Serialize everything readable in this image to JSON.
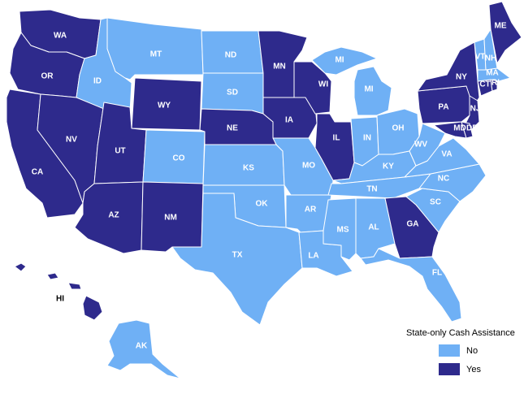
{
  "map": {
    "colors": {
      "no": "#6fb0f5",
      "yes": "#2e2a8c",
      "border": "#ffffff"
    },
    "states": [
      {
        "abbr": "WA",
        "status": "yes"
      },
      {
        "abbr": "OR",
        "status": "yes"
      },
      {
        "abbr": "CA",
        "status": "yes"
      },
      {
        "abbr": "NV",
        "status": "yes"
      },
      {
        "abbr": "ID",
        "status": "no"
      },
      {
        "abbr": "MT",
        "status": "no"
      },
      {
        "abbr": "WY",
        "status": "yes"
      },
      {
        "abbr": "UT",
        "status": "yes"
      },
      {
        "abbr": "AZ",
        "status": "yes"
      },
      {
        "abbr": "CO",
        "status": "no"
      },
      {
        "abbr": "NM",
        "status": "yes"
      },
      {
        "abbr": "ND",
        "status": "no"
      },
      {
        "abbr": "SD",
        "status": "no"
      },
      {
        "abbr": "NE",
        "status": "yes"
      },
      {
        "abbr": "KS",
        "status": "no"
      },
      {
        "abbr": "OK",
        "status": "no"
      },
      {
        "abbr": "TX",
        "status": "no"
      },
      {
        "abbr": "MN",
        "status": "yes"
      },
      {
        "abbr": "IA",
        "status": "yes"
      },
      {
        "abbr": "MO",
        "status": "no"
      },
      {
        "abbr": "AR",
        "status": "no"
      },
      {
        "abbr": "LA",
        "status": "no"
      },
      {
        "abbr": "WI",
        "status": "yes"
      },
      {
        "abbr": "IL",
        "status": "yes"
      },
      {
        "abbr": "MI",
        "status": "no"
      },
      {
        "abbr": "IN",
        "status": "no"
      },
      {
        "abbr": "OH",
        "status": "no"
      },
      {
        "abbr": "KY",
        "status": "no"
      },
      {
        "abbr": "TN",
        "status": "no"
      },
      {
        "abbr": "MS",
        "status": "no"
      },
      {
        "abbr": "AL",
        "status": "no"
      },
      {
        "abbr": "GA",
        "status": "yes"
      },
      {
        "abbr": "FL",
        "status": "no"
      },
      {
        "abbr": "SC",
        "status": "no"
      },
      {
        "abbr": "NC",
        "status": "no"
      },
      {
        "abbr": "VA",
        "status": "no"
      },
      {
        "abbr": "WV",
        "status": "no"
      },
      {
        "abbr": "PA",
        "status": "yes"
      },
      {
        "abbr": "NY",
        "status": "yes"
      },
      {
        "abbr": "NJ",
        "status": "yes"
      },
      {
        "abbr": "MD",
        "status": "yes"
      },
      {
        "abbr": "DE",
        "status": "yes"
      },
      {
        "abbr": "CT",
        "status": "yes"
      },
      {
        "abbr": "RI",
        "status": "yes"
      },
      {
        "abbr": "MA",
        "status": "no"
      },
      {
        "abbr": "VT",
        "status": "no"
      },
      {
        "abbr": "NH",
        "status": "no"
      },
      {
        "abbr": "ME",
        "status": "yes"
      },
      {
        "abbr": "AK",
        "status": "no"
      },
      {
        "abbr": "HI",
        "status": "yes"
      }
    ],
    "labels": {
      "WA": "WA",
      "OR": "OR",
      "CA": "CA",
      "NV": "NV",
      "ID": "ID",
      "MT": "MT",
      "WY": "WY",
      "UT": "UT",
      "AZ": "AZ",
      "CO": "CO",
      "NM": "NM",
      "ND": "ND",
      "SD": "SD",
      "NE": "NE",
      "KS": "KS",
      "OK": "OK",
      "TX": "TX",
      "MN": "MN",
      "IA": "IA",
      "MO": "MO",
      "AR": "AR",
      "LA": "LA",
      "WI": "WI",
      "IL": "IL",
      "MI_UP": "MI",
      "MI_LP": "MI",
      "IN": "IN",
      "OH": "OH",
      "KY": "KY",
      "TN": "TN",
      "MS": "MS",
      "AL": "AL",
      "GA": "GA",
      "FL": "FL",
      "SC": "SC",
      "NC": "NC",
      "VA": "VA",
      "WV": "WV",
      "PA": "PA",
      "NY": "NY",
      "NJ": "NJ",
      "MD": "MD",
      "DE": "DE",
      "CT": "CT",
      "RI": "RI",
      "MA": "MA",
      "VT": "VT",
      "NH": "NH",
      "ME": "ME",
      "AK": "AK",
      "HI": "HI"
    }
  },
  "legend": {
    "title": "State-only Cash Assistance",
    "items": [
      {
        "label": "No",
        "status": "no"
      },
      {
        "label": "Yes",
        "status": "yes"
      }
    ]
  }
}
